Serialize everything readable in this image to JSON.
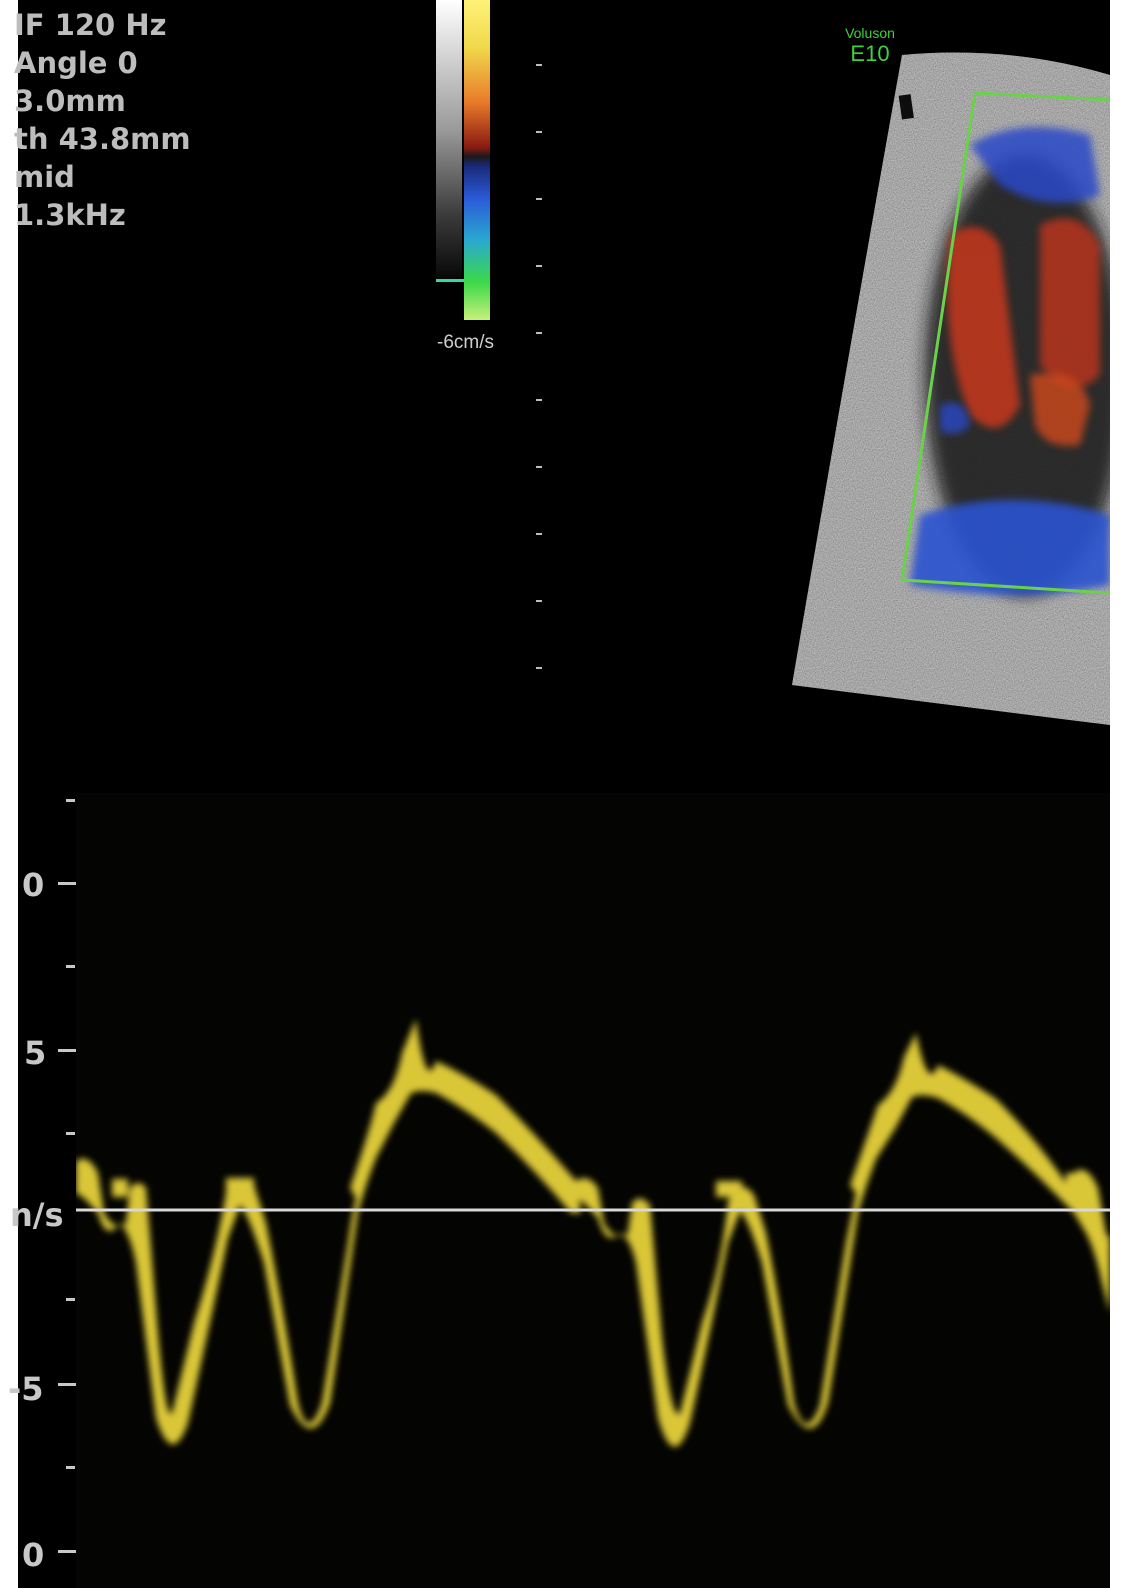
{
  "info_panel": {
    "lines": [
      "IF 120 Hz",
      "Angle  0",
      "  3.0mm",
      "th 43.8mm",
      "mid",
      " 1.3kHz"
    ]
  },
  "color_scale": {
    "label": "-6cm/s"
  },
  "logo": {
    "brand": "Voluson",
    "model": "E10"
  },
  "spectral_axis": {
    "labels": [
      "0",
      "5",
      "n/s",
      "-5",
      "0"
    ]
  },
  "colors": {
    "doppler_waveform": "#e6d23a",
    "roi_box": "#6ad24a",
    "flow_toward": "#c83a1e",
    "flow_away": "#2846c8",
    "baseline": "#d8d8d8"
  },
  "icons": {
    "logo": "voluson-logo"
  }
}
